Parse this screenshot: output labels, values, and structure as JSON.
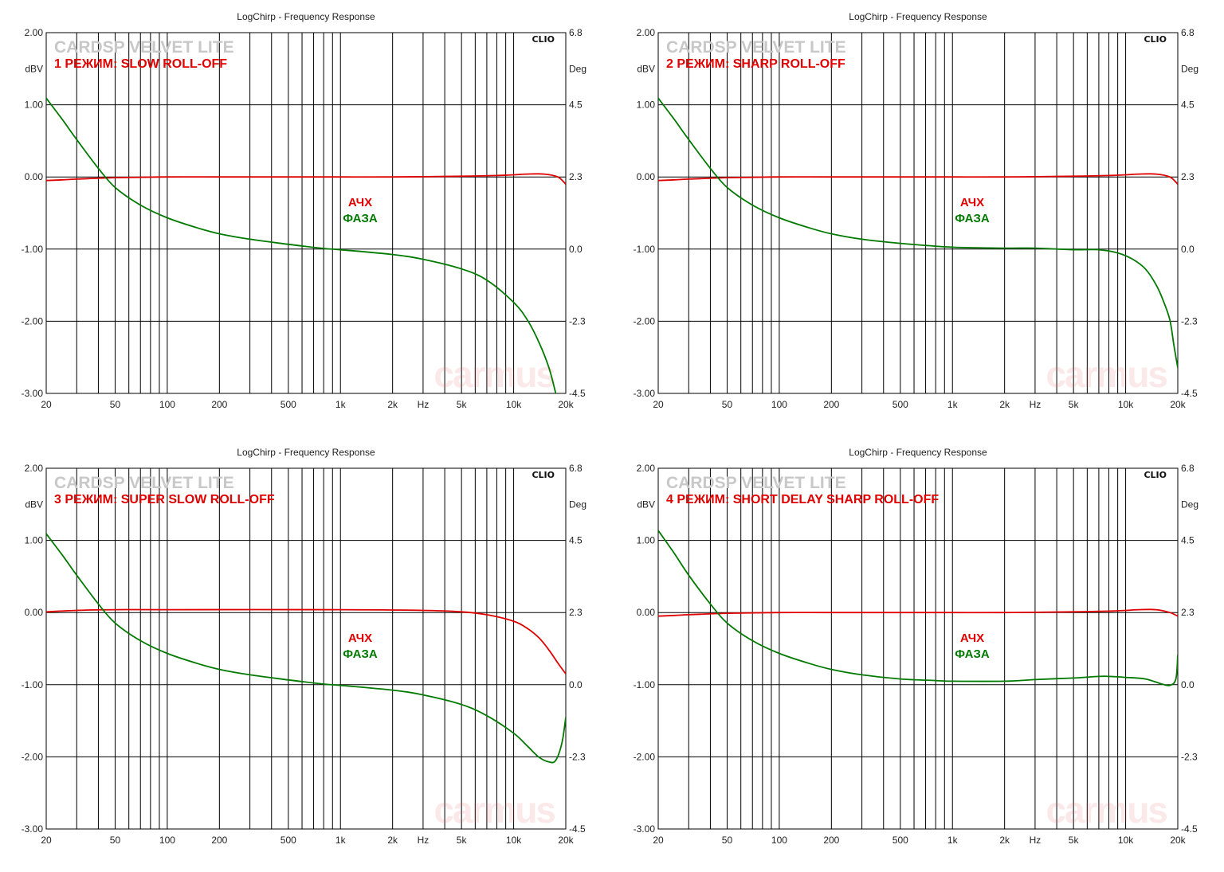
{
  "colors": {
    "ach": "#e00000",
    "phase": "#007a00",
    "grid": "#000000",
    "brand": "#c8c8c8",
    "watermark": "#e85a5a"
  },
  "labels": {
    "brand": "CARDSP VELVET LITE",
    "clio": "CLIO",
    "legend_ach": "АЧХ",
    "legend_phase": "ФАЗА",
    "watermark": "carmus"
  },
  "chart_data": [
    {
      "type": "line",
      "title": "LogChirp - Frequency Response",
      "mode": "1 РЕЖИМ: SLOW ROLL-OFF",
      "xscale": "log",
      "xlim": [
        20,
        20000
      ],
      "xticks": [
        20,
        50,
        100,
        200,
        500,
        1000,
        2000,
        5000,
        10000,
        20000
      ],
      "xtick_labels": [
        "20",
        "50",
        "100",
        "200",
        "500",
        "1k",
        "2k",
        "5k",
        "10k",
        "20k"
      ],
      "xunit": "Hz",
      "ylabel": "dBV",
      "ylim": [
        -3,
        2
      ],
      "yticks": [
        2,
        1,
        0,
        -1,
        -2,
        -3
      ],
      "ytick_labels": [
        "2.00",
        "1.00",
        "0.00",
        "-1.00",
        "-2.00",
        "-3.00"
      ],
      "y2label": "Deg",
      "y2lim": [
        -4.5,
        6.8
      ],
      "y2tick_labels": [
        "6.8",
        "4.5",
        "2.3",
        "0.0",
        "-2.3",
        "-4.5"
      ],
      "grid": true,
      "series": [
        {
          "name": "АЧХ",
          "axis": "left",
          "x": [
            20,
            25,
            30,
            50,
            100,
            200,
            500,
            1000,
            2000,
            5000,
            8000,
            10000,
            12000,
            15000,
            18000,
            20000
          ],
          "y": [
            -0.05,
            -0.04,
            -0.03,
            -0.01,
            0,
            0,
            0,
            0,
            0,
            0.01,
            0.02,
            0.03,
            0.04,
            0.04,
            0.0,
            -0.1
          ]
        },
        {
          "name": "ФАЗА",
          "axis": "right",
          "x": [
            20,
            25,
            30,
            40,
            50,
            70,
            100,
            150,
            200,
            300,
            500,
            800,
            1000,
            2000,
            3000,
            5000,
            7000,
            10000,
            12000,
            14000,
            16000,
            17500
          ],
          "y": [
            4.75,
            4.05,
            3.45,
            2.55,
            1.95,
            1.4,
            1.0,
            0.68,
            0.5,
            0.33,
            0.17,
            0.04,
            0.0,
            -0.15,
            -0.3,
            -0.6,
            -0.95,
            -1.65,
            -2.2,
            -2.9,
            -3.7,
            -4.5
          ]
        }
      ]
    },
    {
      "type": "line",
      "title": "LogChirp - Frequency Response",
      "mode": "2 РЕЖИМ: SHARP ROLL-OFF",
      "xscale": "log",
      "xlim": [
        20,
        20000
      ],
      "xticks": [
        20,
        50,
        100,
        200,
        500,
        1000,
        2000,
        5000,
        10000,
        20000
      ],
      "xtick_labels": [
        "20",
        "50",
        "100",
        "200",
        "500",
        "1k",
        "2k",
        "5k",
        "10k",
        "20k"
      ],
      "xunit": "Hz",
      "ylabel": "dBV",
      "ylim": [
        -3,
        2
      ],
      "yticks": [
        2,
        1,
        0,
        -1,
        -2,
        -3
      ],
      "ytick_labels": [
        "2.00",
        "1.00",
        "0.00",
        "-1.00",
        "-2.00",
        "-3.00"
      ],
      "y2label": "Deg",
      "y2lim": [
        -4.5,
        6.8
      ],
      "y2tick_labels": [
        "6.8",
        "4.5",
        "2.3",
        "0.0",
        "-2.3",
        "-4.5"
      ],
      "grid": true,
      "series": [
        {
          "name": "АЧХ",
          "axis": "left",
          "x": [
            20,
            25,
            30,
            50,
            100,
            200,
            500,
            1000,
            2000,
            5000,
            8000,
            10000,
            12000,
            15000,
            18000,
            20000
          ],
          "y": [
            -0.05,
            -0.04,
            -0.03,
            -0.01,
            0,
            0,
            0,
            0,
            0,
            0.01,
            0.02,
            0.03,
            0.04,
            0.04,
            0.0,
            -0.1
          ]
        },
        {
          "name": "ФАЗА",
          "axis": "right",
          "x": [
            20,
            25,
            30,
            40,
            50,
            70,
            100,
            150,
            200,
            300,
            500,
            1000,
            2000,
            3000,
            5000,
            7000,
            9000,
            11000,
            13000,
            15000,
            16500,
            18000,
            19000,
            20000
          ],
          "y": [
            4.75,
            4.05,
            3.45,
            2.55,
            1.95,
            1.4,
            1.0,
            0.68,
            0.5,
            0.33,
            0.2,
            0.08,
            0.05,
            0.05,
            0.0,
            0.0,
            -0.1,
            -0.3,
            -0.6,
            -1.1,
            -1.6,
            -2.2,
            -3.0,
            -3.7
          ]
        }
      ]
    },
    {
      "type": "line",
      "title": "LogChirp - Frequency Response",
      "mode": "3 РЕЖИМ: SUPER SLOW ROLL-OFF",
      "xscale": "log",
      "xlim": [
        20,
        20000
      ],
      "xticks": [
        20,
        50,
        100,
        200,
        500,
        1000,
        2000,
        5000,
        10000,
        20000
      ],
      "xtick_labels": [
        "20",
        "50",
        "100",
        "200",
        "500",
        "1k",
        "2k",
        "5k",
        "10k",
        "20k"
      ],
      "xunit": "Hz",
      "ylabel": "dBV",
      "ylim": [
        -3,
        2
      ],
      "yticks": [
        2,
        1,
        0,
        -1,
        -2,
        -3
      ],
      "ytick_labels": [
        "2.00",
        "1.00",
        "0.00",
        "-1.00",
        "-2.00",
        "-3.00"
      ],
      "y2label": "Deg",
      "y2lim": [
        -4.5,
        6.8
      ],
      "y2tick_labels": [
        "6.8",
        "4.5",
        "2.3",
        "0.0",
        "-2.3",
        "-4.5"
      ],
      "grid": true,
      "series": [
        {
          "name": "АЧХ",
          "axis": "left",
          "x": [
            20,
            30,
            50,
            100,
            1000,
            3000,
            5000,
            7000,
            10000,
            12000,
            14000,
            16000,
            18000,
            20000
          ],
          "y": [
            0.01,
            0.03,
            0.04,
            0.04,
            0.04,
            0.03,
            0.01,
            -0.03,
            -0.12,
            -0.22,
            -0.35,
            -0.52,
            -0.7,
            -0.85
          ]
        },
        {
          "name": "ФАЗА",
          "axis": "right",
          "x": [
            20,
            25,
            30,
            40,
            50,
            70,
            100,
            150,
            200,
            300,
            500,
            800,
            1000,
            2000,
            3000,
            5000,
            7000,
            10000,
            12000,
            14000,
            16000,
            17500,
            19000,
            20000
          ],
          "y": [
            4.75,
            4.05,
            3.45,
            2.55,
            1.95,
            1.4,
            1.0,
            0.68,
            0.5,
            0.33,
            0.17,
            0.04,
            0.0,
            -0.15,
            -0.3,
            -0.6,
            -0.95,
            -1.5,
            -1.9,
            -2.25,
            -2.4,
            -2.35,
            -1.8,
            -1.0
          ]
        }
      ]
    },
    {
      "type": "line",
      "title": "LogChirp - Frequency Response",
      "mode": "4 РЕЖИМ: SHORT DELAY SHARP ROLL-OFF",
      "xscale": "log",
      "xlim": [
        20,
        20000
      ],
      "xticks": [
        20,
        50,
        100,
        200,
        500,
        1000,
        2000,
        5000,
        10000,
        20000
      ],
      "xtick_labels": [
        "20",
        "50",
        "100",
        "200",
        "500",
        "1k",
        "2k",
        "5k",
        "10k",
        "20k"
      ],
      "xunit": "Hz",
      "ylabel": "dBV",
      "ylim": [
        -3,
        2
      ],
      "yticks": [
        2,
        1,
        0,
        -1,
        -2,
        -3
      ],
      "ytick_labels": [
        "2.00",
        "1.00",
        "0.00",
        "-1.00",
        "-2.00",
        "-3.00"
      ],
      "y2label": "Deg",
      "y2lim": [
        -4.5,
        6.8
      ],
      "y2tick_labels": [
        "6.8",
        "4.5",
        "2.3",
        "0.0",
        "-2.3",
        "-4.5"
      ],
      "grid": true,
      "series": [
        {
          "name": "АЧХ",
          "axis": "left",
          "x": [
            20,
            25,
            30,
            50,
            100,
            200,
            500,
            1000,
            2000,
            5000,
            8000,
            10000,
            12000,
            15000,
            18000,
            20000
          ],
          "y": [
            -0.05,
            -0.04,
            -0.03,
            -0.01,
            0,
            0,
            0,
            0,
            0,
            0.01,
            0.02,
            0.03,
            0.04,
            0.04,
            0.0,
            -0.05
          ]
        },
        {
          "name": "ФАЗА",
          "axis": "right",
          "x": [
            20,
            25,
            30,
            40,
            50,
            70,
            100,
            150,
            200,
            300,
            500,
            800,
            1000,
            2000,
            3000,
            5000,
            7000,
            8000,
            10000,
            13000,
            16000,
            18000,
            19500,
            20000
          ],
          "y": [
            4.85,
            4.1,
            3.45,
            2.55,
            1.95,
            1.4,
            1.0,
            0.68,
            0.5,
            0.33,
            0.2,
            0.15,
            0.13,
            0.13,
            0.18,
            0.23,
            0.28,
            0.28,
            0.25,
            0.2,
            0.05,
            0.0,
            0.2,
            0.95
          ]
        }
      ]
    }
  ]
}
